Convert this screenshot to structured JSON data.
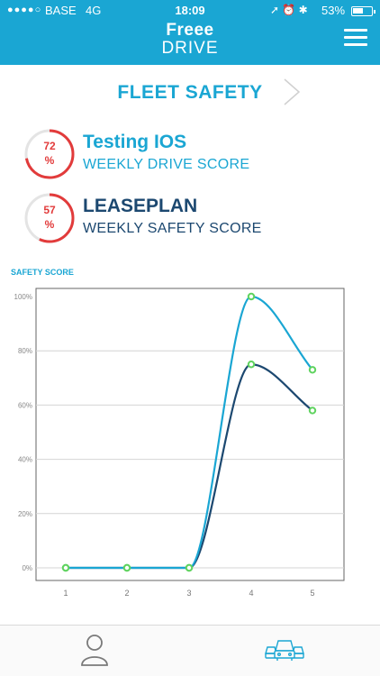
{
  "status_bar": {
    "signal": "●●●●○",
    "carrier": "BASE",
    "network": "4G",
    "time": "18:09",
    "icons": "➚ ⏰ ✱",
    "battery": "53%",
    "battery_level": 0.53
  },
  "logo": {
    "line1": "Freee",
    "line2": "DRIVE"
  },
  "title": "FLEET SAFETY",
  "scores": [
    {
      "value": "72",
      "unit": "%",
      "name": "Testing IOS",
      "subtitle": "WEEKLY DRIVE SCORE",
      "fraction": 0.72,
      "color": "#1aa6d3"
    },
    {
      "value": "57",
      "unit": "%",
      "name": "LEASEPLAN",
      "subtitle": "WEEKLY SAFETY SCORE",
      "fraction": 0.57,
      "color": "#1c4870"
    }
  ],
  "chart_title": "SAFETY SCORE",
  "chart_data": {
    "type": "line",
    "x": [
      1,
      2,
      3,
      4,
      5
    ],
    "series": [
      {
        "values": [
          0,
          0,
          0,
          100,
          73
        ],
        "color": "#1aa6d3"
      },
      {
        "values": [
          0,
          0,
          0,
          75,
          58
        ],
        "color": "#1c4870"
      }
    ],
    "xlabel": "",
    "ylabel": "",
    "ylim": [
      0,
      100
    ],
    "y_ticks": [
      "0%",
      "20%",
      "40%",
      "60%",
      "80%",
      "100%"
    ],
    "x_ticks": [
      "1",
      "2",
      "3",
      "4",
      "5"
    ],
    "grid": true,
    "marker_color": "#5fd35f"
  },
  "nav": {
    "profile_icon": "user-icon",
    "fleet_icon": "cars-icon"
  },
  "colors": {
    "accent": "#1aa6d3",
    "dark": "#1c4870",
    "alert": "#e23b3b"
  }
}
